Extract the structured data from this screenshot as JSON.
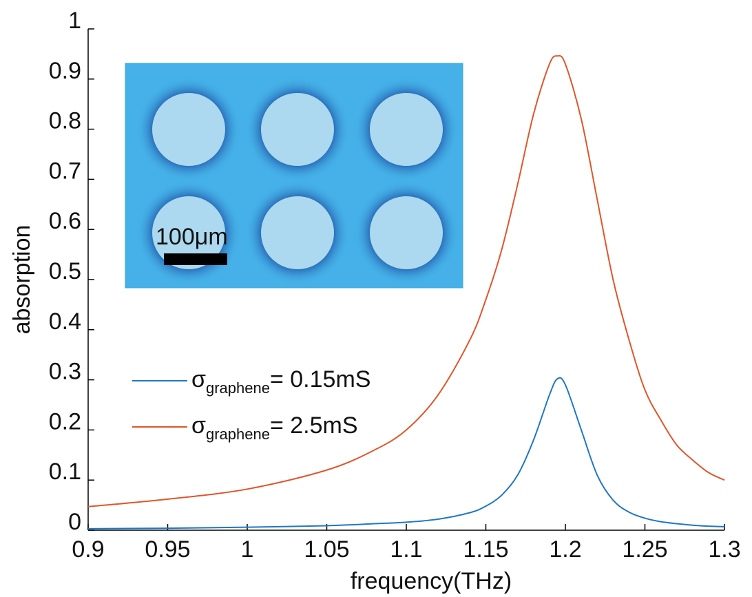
{
  "chart_data": {
    "type": "line",
    "xlabel": "frequency(THz)",
    "ylabel": "absorption",
    "annotations": [
      "100μm"
    ],
    "x": [
      0.9,
      0.95,
      1,
      1.05,
      1.08,
      1.1,
      1.12,
      1.14,
      1.15,
      1.16,
      1.17,
      1.18,
      1.19,
      1.195,
      1.2,
      1.21,
      1.22,
      1.23,
      1.24,
      1.25,
      1.26,
      1.27,
      1.28,
      1.29,
      1.3
    ],
    "series": [
      {
        "name": "σgraphene= 0.15mS",
        "color": "#1f77c4",
        "values": [
          0.003,
          0.004,
          0.006,
          0.009,
          0.013,
          0.016,
          0.022,
          0.035,
          0.048,
          0.07,
          0.11,
          0.18,
          0.27,
          0.302,
          0.29,
          0.2,
          0.11,
          0.06,
          0.036,
          0.024,
          0.017,
          0.013,
          0.01,
          0.008,
          0.007
        ]
      },
      {
        "name": "σgraphene= 2.5mS",
        "color": "#e0552a",
        "values": [
          0.047,
          0.062,
          0.082,
          0.12,
          0.16,
          0.2,
          0.27,
          0.38,
          0.46,
          0.56,
          0.69,
          0.83,
          0.93,
          0.946,
          0.93,
          0.82,
          0.66,
          0.5,
          0.38,
          0.28,
          0.22,
          0.17,
          0.14,
          0.115,
          0.1
        ]
      }
    ],
    "xlim": [
      0.9,
      1.3
    ],
    "ylim": [
      0,
      1
    ],
    "xticks": [
      0.9,
      0.95,
      1,
      1.05,
      1.1,
      1.15,
      1.2,
      1.25,
      1.3
    ],
    "yticks": [
      0,
      0.1,
      0.2,
      0.3,
      0.4,
      0.5,
      0.6,
      0.7,
      0.8,
      0.9,
      1
    ],
    "grid": false,
    "legend": "lower left"
  }
}
